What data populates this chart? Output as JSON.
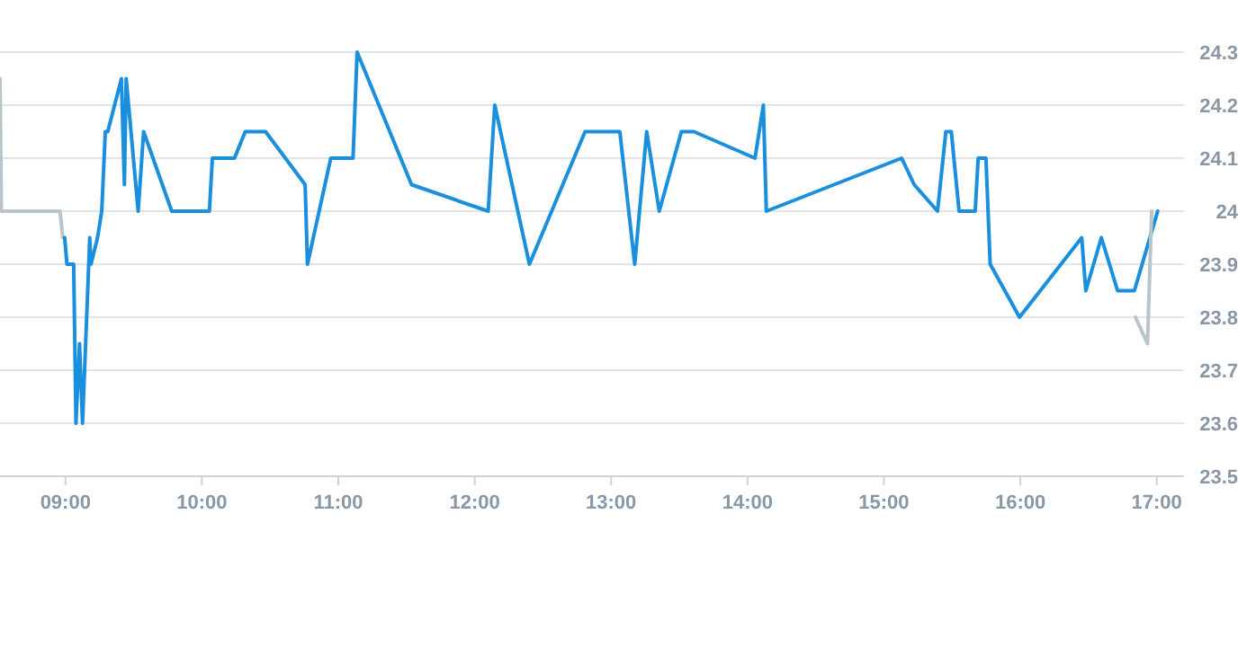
{
  "chart_data": {
    "type": "line",
    "xlim": [
      8.52,
      17.2
    ],
    "xticks": [
      {
        "value": 9,
        "label": "09:00"
      },
      {
        "value": 10,
        "label": "10:00"
      },
      {
        "value": 11,
        "label": "11:00"
      },
      {
        "value": 12,
        "label": "12:00"
      },
      {
        "value": 13,
        "label": "13:00"
      },
      {
        "value": 14,
        "label": "14:00"
      },
      {
        "value": 15,
        "label": "15:00"
      },
      {
        "value": 16,
        "label": "16:00"
      },
      {
        "value": 17,
        "label": "17:00"
      }
    ],
    "ylim": [
      23.5,
      24.3
    ],
    "yticks": [
      23.5,
      23.6,
      23.7,
      23.8,
      23.9,
      24,
      24.1,
      24.2,
      24.3
    ],
    "grid": "y",
    "marker": "none",
    "line_style": "solid",
    "series": [
      {
        "color": "#b9c5cd",
        "x": [
          8.52,
          8.53,
          8.96,
          8.98,
          8.994
        ],
        "values": [
          24.25,
          24.0,
          24.0,
          23.95,
          23.95
        ]
      },
      {
        "color": "#1a8fdd",
        "x": [
          8.994,
          9.011,
          9.06,
          9.077,
          9.103,
          9.125,
          9.178,
          9.187,
          9.235,
          9.266,
          9.292,
          9.31,
          9.41,
          9.432,
          9.445,
          9.533,
          9.573,
          9.779,
          10.055,
          10.077,
          10.239,
          10.318,
          10.467,
          10.757,
          10.774,
          10.945,
          11.108,
          11.138,
          11.537,
          12.099,
          12.147,
          12.401,
          12.809,
          13.064,
          13.173,
          13.261,
          13.353,
          13.515,
          13.607,
          14.055,
          14.116,
          14.138,
          15.13,
          15.222,
          15.393,
          15.454,
          15.494,
          15.551,
          15.669,
          15.691,
          15.748,
          15.779,
          15.994,
          16.45,
          16.48,
          16.594,
          16.713,
          16.836,
          17.007
        ],
        "values": [
          23.95,
          23.9,
          23.9,
          23.6,
          23.75,
          23.6,
          23.95,
          23.9,
          23.95,
          24.0,
          24.15,
          24.15,
          24.25,
          24.05,
          24.25,
          24.0,
          24.15,
          24.0,
          24.0,
          24.1,
          24.1,
          24.15,
          24.15,
          24.05,
          23.9,
          24.1,
          24.1,
          24.3,
          24.05,
          24.0,
          24.2,
          23.9,
          24.15,
          24.15,
          23.9,
          24.15,
          24.0,
          24.15,
          24.15,
          24.1,
          24.2,
          24.0,
          24.1,
          24.05,
          24.0,
          24.15,
          24.15,
          24.0,
          24.0,
          24.1,
          24.1,
          23.9,
          23.8,
          23.95,
          23.85,
          23.95,
          23.85,
          23.85,
          24.0
        ]
      },
      {
        "color": "#b9c5cd",
        "x": [
          16.844,
          16.932,
          16.963
        ],
        "values": [
          23.8,
          23.75,
          24.0
        ]
      }
    ]
  }
}
